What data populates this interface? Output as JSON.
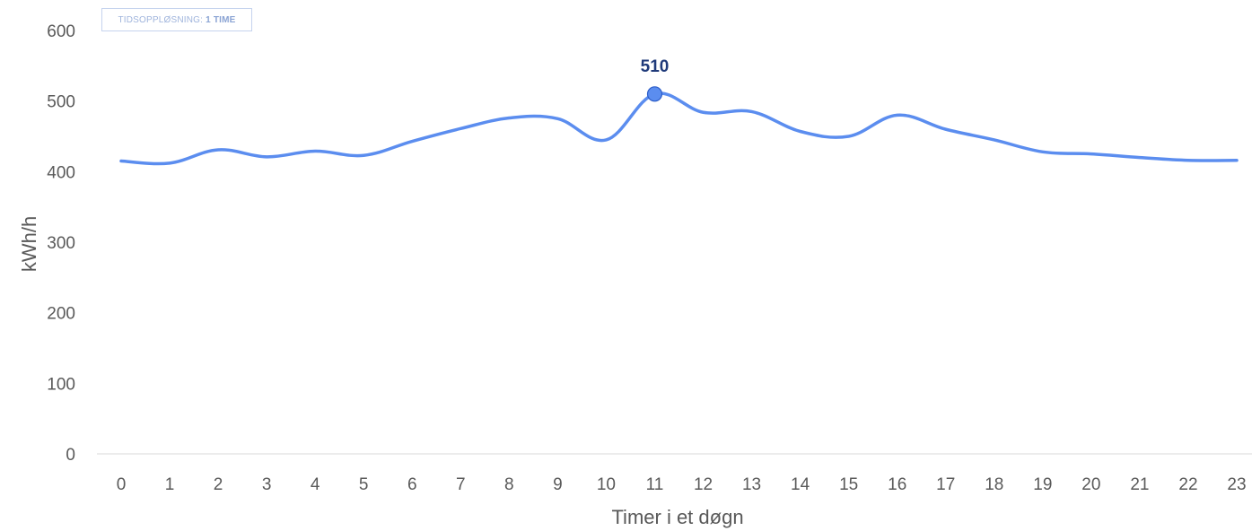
{
  "badge": {
    "label": "TIDSOPPLØSNING:",
    "value": "1 TIME"
  },
  "colors": {
    "line": "#5b8def",
    "peak_label": "#1f3a7a",
    "axis": "#d9d9d9"
  },
  "chart_data": {
    "type": "line",
    "title": "",
    "xlabel": "Timer i et døgn",
    "ylabel": "kWh/h",
    "ylim": [
      0,
      600
    ],
    "yticks": [
      0,
      100,
      200,
      300,
      400,
      500,
      600
    ],
    "categories": [
      "0",
      "1",
      "2",
      "3",
      "4",
      "5",
      "6",
      "7",
      "8",
      "9",
      "10",
      "11",
      "12",
      "13",
      "14",
      "15",
      "16",
      "17",
      "18",
      "19",
      "20",
      "21",
      "22",
      "23"
    ],
    "series": [
      {
        "values": [
          415,
          412,
          431,
          421,
          429,
          423,
          443,
          461,
          476,
          475,
          445,
          510,
          484,
          485,
          457,
          450,
          480,
          460,
          445,
          428,
          425,
          420,
          416,
          416
        ]
      }
    ],
    "annotation": {
      "index": 11,
      "label": "510"
    },
    "grid": false,
    "legend": "none"
  }
}
